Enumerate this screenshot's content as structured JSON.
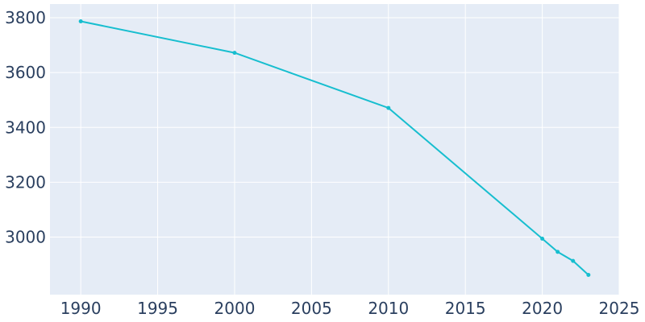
{
  "chart_data": {
    "type": "line",
    "title": "",
    "xlabel": "",
    "ylabel": "",
    "xlim": [
      1988,
      2025
    ],
    "ylim": [
      2790,
      3850
    ],
    "x_ticks": [
      1990,
      1995,
      2000,
      2005,
      2010,
      2015,
      2020,
      2025
    ],
    "y_ticks": [
      3000,
      3200,
      3400,
      3600,
      3800
    ],
    "grid": true,
    "legend": "none",
    "colors": {
      "plot_background": "#e5ecf6",
      "gridline": "#ffffff",
      "series": "#17becf",
      "tick_text": "#2a3f5f"
    },
    "series": [
      {
        "x": [
          1990,
          2000,
          2010,
          2020,
          2021,
          2022,
          2023
        ],
        "y": [
          3787,
          3672,
          3471,
          2994,
          2946,
          2913,
          2862
        ]
      }
    ]
  }
}
